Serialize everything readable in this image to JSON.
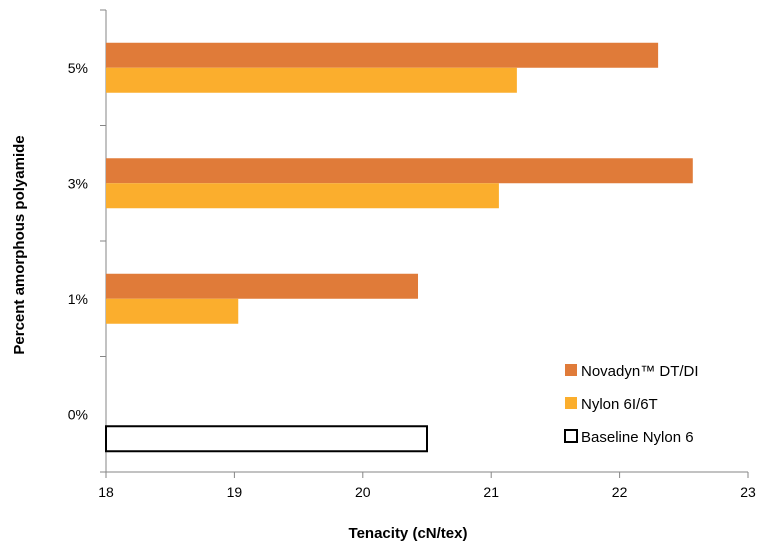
{
  "chart_data": {
    "type": "bar",
    "orientation": "horizontal",
    "categories": [
      "0%",
      "1%",
      "3%",
      "5%"
    ],
    "series": [
      {
        "name": "Novadyn™ DT/DI",
        "color": "#E07B39",
        "values": [
          null,
          20.43,
          22.57,
          22.3
        ]
      },
      {
        "name": "Nylon 6I/6T",
        "color": "#FBAE2D",
        "values": [
          null,
          19.03,
          21.06,
          21.2
        ]
      },
      {
        "name": "Baseline Nylon 6",
        "color": "#FFFFFF",
        "stroke": "#000000",
        "values": [
          20.5,
          null,
          null,
          null
        ]
      }
    ],
    "xlabel": "Tenacity (cN/tex)",
    "ylabel": "Percent amorphous polyamide",
    "xlim": [
      18,
      23
    ],
    "xticks": [
      "18",
      "19",
      "20",
      "21",
      "22",
      "23"
    ],
    "grid": false,
    "legend_position": "bottom-right"
  }
}
